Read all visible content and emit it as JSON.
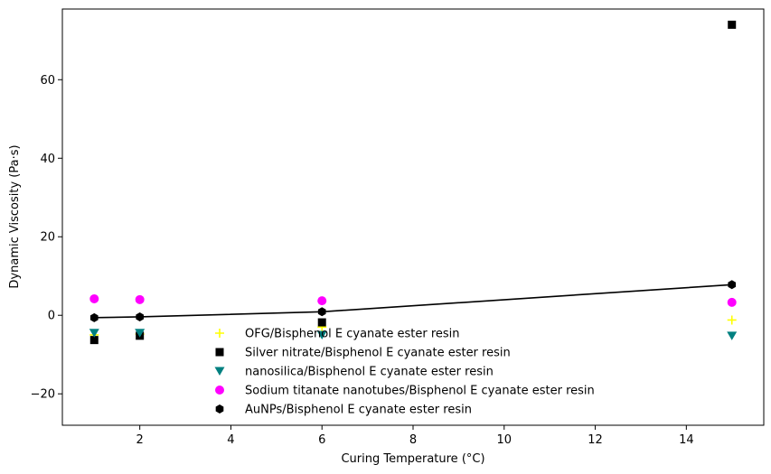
{
  "chart_data": {
    "type": "scatter",
    "xlabel": "Curing Temperature (°C)",
    "ylabel": "Dynamic Viscosity (Pa·s)",
    "xlim": [
      0.3,
      15.7
    ],
    "ylim": [
      -28,
      78
    ],
    "x_ticks": [
      2,
      4,
      6,
      8,
      10,
      12,
      14
    ],
    "y_ticks": [
      -20,
      0,
      20,
      40,
      60
    ],
    "grid": false,
    "legend_position": "lower-center",
    "series": [
      {
        "name": "OFG/Bisphenol E cyanate ester resin",
        "marker": "plus",
        "color": "#ffff00",
        "line": false,
        "x": [
          1,
          2,
          6,
          15
        ],
        "y": [
          -5.0,
          -4.8,
          -3.0,
          -1.2
        ]
      },
      {
        "name": "Silver nitrate/Bisphenol E cyanate ester resin",
        "marker": "square",
        "color": "#000000",
        "line": false,
        "x": [
          1,
          2,
          6,
          15
        ],
        "y": [
          -6.3,
          -5.2,
          -1.8,
          74.0
        ]
      },
      {
        "name": "nanosilica/Bisphenol E cyanate ester resin",
        "marker": "triangle-down",
        "color": "#008080",
        "line": false,
        "x": [
          1,
          2,
          6,
          15
        ],
        "y": [
          -4.5,
          -4.5,
          -5.0,
          -5.2
        ]
      },
      {
        "name": "Sodium titanate nanotubes/Bisphenol E cyanate ester resin",
        "marker": "circle",
        "color": "#ff00ff",
        "line": false,
        "x": [
          1,
          2,
          6,
          15
        ],
        "y": [
          4.2,
          4.0,
          3.7,
          3.3
        ]
      },
      {
        "name": "AuNPs/Bisphenol E cyanate ester resin",
        "marker": "hexagon",
        "color": "#000000",
        "line": true,
        "x": [
          1,
          2,
          6,
          15
        ],
        "y": [
          -0.6,
          -0.4,
          0.9,
          7.8
        ]
      }
    ]
  }
}
